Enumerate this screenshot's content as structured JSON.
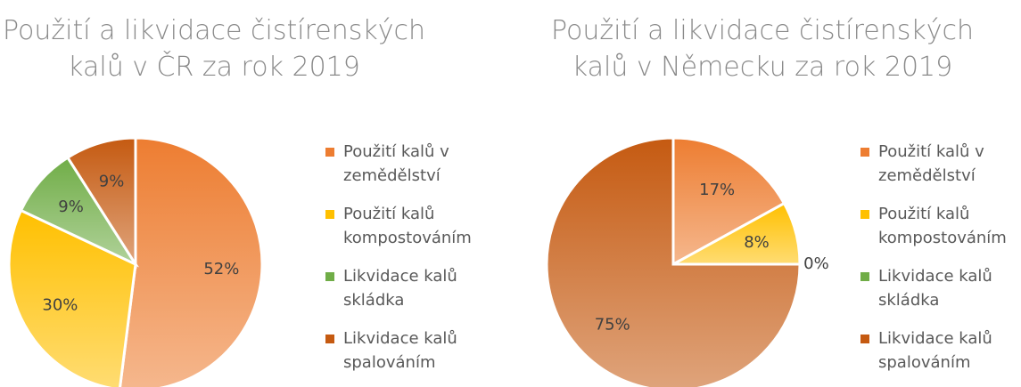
{
  "chart_data": [
    {
      "type": "pie",
      "title": "Použití a likvidace čistírenských kalů v ČR za rok 2019",
      "categories": [
        "Použití kalů v zemědělství",
        "Použití kalů kompostováním",
        "Likvidace kalů skládka",
        "Likvidace kalů spalováním"
      ],
      "values": [
        52,
        30,
        9,
        9
      ],
      "value_labels": [
        "52%",
        "30%",
        "9%",
        "9%"
      ],
      "colors": [
        "#ED7D31",
        "#FFC000",
        "#70AD47",
        "#C55A11"
      ],
      "legend": "right"
    },
    {
      "type": "pie",
      "title": "Použití a likvidace čistírenských kalů v Německu za rok 2019",
      "categories": [
        "Použití kalů v zemědělství",
        "Použití kalů kompostováním",
        "Likvidace kalů skládka",
        "Likvidace kalů spalováním"
      ],
      "values": [
        17,
        8,
        0,
        75
      ],
      "value_labels": [
        "17%",
        "8%",
        "0%",
        "75%"
      ],
      "colors": [
        "#ED7D31",
        "#FFC000",
        "#70AD47",
        "#C55A11"
      ],
      "legend": "right"
    }
  ]
}
